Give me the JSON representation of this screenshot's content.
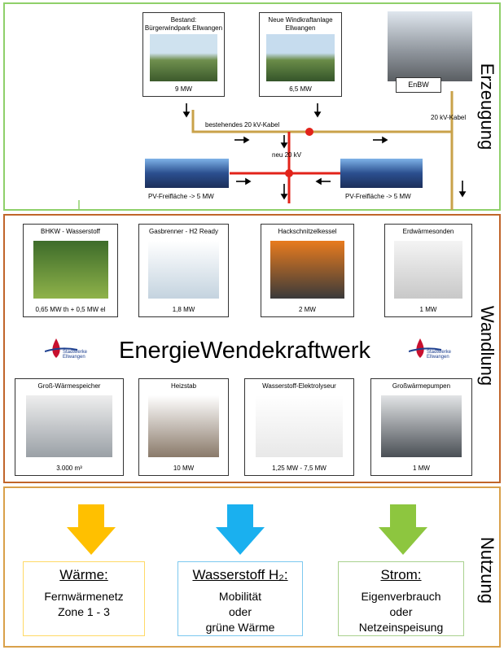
{
  "erzeugung": {
    "label": "Erzeugung",
    "sources": [
      {
        "title": [
          "Bestand:",
          "Bürgerwindpark Ellwangen"
        ],
        "capacity": "9 MW"
      },
      {
        "title": [
          "Neue Windkraftanlage",
          "Ellwangen"
        ],
        "capacity": "6,5 MW"
      }
    ],
    "substation": "EnBW",
    "cable_existing": "bestehendes 20 kV-Kabel",
    "cable_new": "neu 20 kV",
    "cable_right": "20 kV-Kabel",
    "pv": [
      "PV-Freifläche -> 5 MW",
      "PV-Freifläche -> 5 MW"
    ]
  },
  "wandlung": {
    "label": "Wandlung",
    "title": "EnergieWendekraftwerk",
    "logo": [
      "Stadtwerke",
      "Ellwangen"
    ],
    "units": [
      {
        "name": "BHKW - Wasserstoff",
        "capacity": "0,65 MW th + 0,5 MW el"
      },
      {
        "name": "Gasbrenner - H2 Ready",
        "capacity": "1,8 MW"
      },
      {
        "name": "Hackschnitzelkessel",
        "capacity": "2 MW"
      },
      {
        "name": "Erdwärmesonden",
        "capacity": "1 MW"
      },
      {
        "name": "Groß-Wärmespeicher",
        "capacity": "3.000 m³"
      },
      {
        "name": "Heizstab",
        "capacity": "10 MW"
      },
      {
        "name": "Wasserstoff-Elektrolyseur",
        "capacity": "1,25 MW - 7,5 MW"
      },
      {
        "name": "Großwärmepumpen",
        "capacity": "1 MW"
      }
    ]
  },
  "nutzung": {
    "label": "Nutzung",
    "uses": [
      {
        "heading": "Wärme:",
        "lines": [
          "Fernwärmenetz",
          "Zone 1 - 3"
        ]
      },
      {
        "heading": "Wasserstoff H₂:",
        "lines": [
          "Mobilität",
          "oder",
          "grüne Wärme"
        ]
      },
      {
        "heading": "Strom:",
        "lines": [
          "Eigenverbrauch",
          "oder",
          "Netzeinspeisung"
        ]
      }
    ]
  }
}
